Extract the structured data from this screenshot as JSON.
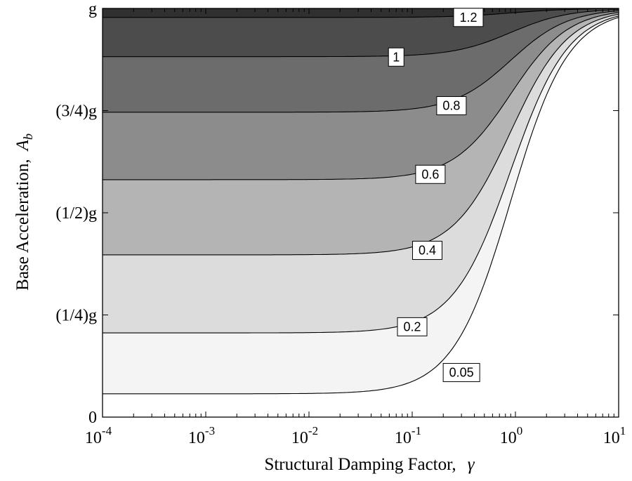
{
  "chart_data": {
    "type": "contour",
    "xlabel": "Structural Damping Factor,",
    "xlabel_symbol": "γ",
    "ylabel": "Base Acceleration,",
    "ylabel_symbol": "A",
    "ylabel_subscript": "b",
    "x_scale": "log",
    "xlim": [
      0.0001,
      10
    ],
    "ylim": [
      0,
      1
    ],
    "y_unit": "g",
    "x_ticks": [
      {
        "base": "10",
        "exp": "-4",
        "value": 0.0001
      },
      {
        "base": "10",
        "exp": "-3",
        "value": 0.001
      },
      {
        "base": "10",
        "exp": "-2",
        "value": 0.01
      },
      {
        "base": "10",
        "exp": "-1",
        "value": 0.1
      },
      {
        "base": "10",
        "exp": "0",
        "value": 1
      },
      {
        "base": "10",
        "exp": "1",
        "value": 10
      }
    ],
    "y_ticks": [
      {
        "label": "0",
        "value": 0
      },
      {
        "label": "(1/4)g",
        "value": 0.25
      },
      {
        "label": "(1/2)g",
        "value": 0.5
      },
      {
        "label": "(3/4)g",
        "value": 0.75
      },
      {
        "label": "g",
        "value": 1
      }
    ],
    "levels": [
      {
        "label": "0.05",
        "value": 0.05,
        "plateau": 0.057,
        "label_x": 0.3,
        "label_y": 0.109,
        "color": "#f4f4f4"
      },
      {
        "label": "0.2",
        "value": 0.2,
        "plateau": 0.206,
        "label_x": 0.1,
        "label_y": 0.221,
        "color": "#dcdcdc"
      },
      {
        "label": "0.4",
        "value": 0.4,
        "plateau": 0.397,
        "label_x": 0.14,
        "label_y": 0.408,
        "color": "#b4b4b4"
      },
      {
        "label": "0.6",
        "value": 0.6,
        "plateau": 0.581,
        "label_x": 0.15,
        "label_y": 0.594,
        "color": "#8c8c8c"
      },
      {
        "label": "0.8",
        "value": 0.8,
        "plateau": 0.746,
        "label_x": 0.24,
        "label_y": 0.762,
        "color": "#6c6c6c"
      },
      {
        "label": "1",
        "value": 1.0,
        "plateau": 0.882,
        "label_x": 0.07,
        "label_y": 0.881,
        "color": "#4c4c4c"
      },
      {
        "label": "1.2",
        "value": 1.2,
        "plateau": 0.978,
        "label_x": 0.35,
        "label_y": 0.978,
        "color": "#303030"
      }
    ],
    "base_color": "#ffffff",
    "transition_center": 0.9,
    "transition_width": 0.28
  }
}
